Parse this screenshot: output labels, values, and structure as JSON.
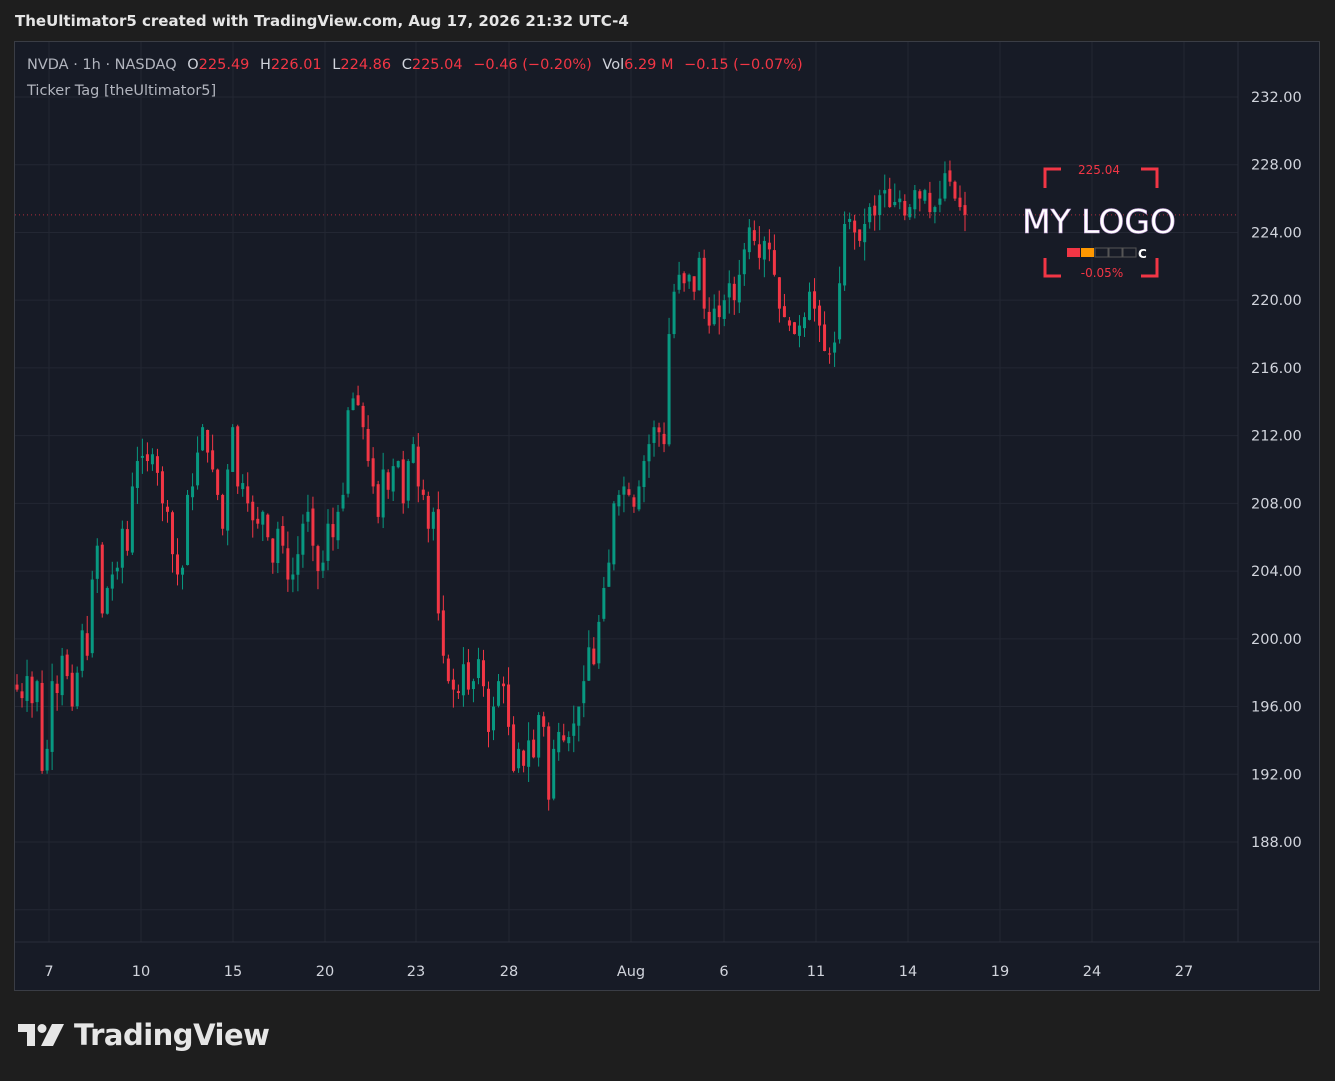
{
  "header": {
    "text": "TheUltimator5 created with TradingView.com, Aug 17, 2026 21:32 UTC-4"
  },
  "legend": {
    "symbol": "NVDA · 1h · NASDAQ",
    "open_label": "O",
    "open": "225.49",
    "high_label": "H",
    "high": "226.01",
    "low_label": "L",
    "low": "224.86",
    "close_label": "C",
    "close": "225.04",
    "change": "−0.46 (−0.20%)",
    "vol_label": "Vol",
    "vol": "6.29 M",
    "vol_change": "−0.15 (−0.07%)",
    "indicator": "Ticker Tag [theUltimator5]"
  },
  "overlay": {
    "price": "225.04",
    "logo_text": "MY LOGO",
    "label_c": "C",
    "pct": "-0.05%"
  },
  "brand": {
    "name": "TradingView"
  },
  "colors": {
    "background": "#171b26",
    "grid": "#232733",
    "up": "#089981",
    "down": "#f23645",
    "axis_text": "#d1d4dc",
    "overlay_accent": "#f23645"
  },
  "chart_data": {
    "type": "candlestick",
    "symbol": "NVDA",
    "interval": "1h",
    "exchange": "NASDAQ",
    "y_ticks": [
      232,
      228,
      224,
      220,
      216,
      212,
      208,
      204,
      200,
      196,
      192,
      188
    ],
    "y_tick_labels": [
      "232.00",
      "228.00",
      "224.00",
      "220.00",
      "216.00",
      "212.00",
      "208.00",
      "204.00",
      "200.00",
      "196.00",
      "192.00",
      "188.00"
    ],
    "ylim": [
      184,
      234
    ],
    "x_labels": [
      "7",
      "10",
      "15",
      "20",
      "23",
      "28",
      "Aug",
      "6",
      "11",
      "14",
      "19",
      "24",
      "27"
    ],
    "last_price": 225.04,
    "price_path": [
      197,
      196.5,
      197.8,
      196.2,
      197.5,
      192.2,
      193.5,
      197.5,
      196.8,
      199,
      197.8,
      196,
      198,
      200.5,
      199,
      203.5,
      205.5,
      201.5,
      203,
      203.8,
      204.2,
      206.5,
      205.2,
      209,
      210.5,
      210.8,
      210.5,
      210.9,
      209.8,
      208,
      207.5,
      205,
      203.8,
      204.2,
      208.5,
      209,
      211,
      212.5,
      211,
      210,
      208.5,
      206.5,
      210,
      212.5,
      209,
      209.2,
      208,
      207,
      206.8,
      207.5,
      206,
      204.5,
      206.5,
      205.5,
      203.5,
      203.8,
      205,
      206.8,
      207.5,
      205.5,
      204,
      204.5,
      206.8,
      206,
      207.5,
      208.5,
      213.5,
      214.2,
      213.8,
      212.5,
      210.5,
      209,
      207.2,
      210,
      208.8,
      210.2,
      210.5,
      208,
      210.5,
      211.5,
      209,
      208.5,
      206.5,
      207.5,
      201.5,
      199,
      197.5,
      197,
      196.8,
      198.5,
      197,
      197.5,
      198.8,
      197.2,
      194.5,
      196,
      197.5,
      197.2,
      194.8,
      192.2,
      193.5,
      192.5,
      194,
      193,
      195.5,
      194.8,
      190.5,
      193.5,
      194.5,
      194,
      194.2,
      195,
      196,
      197.5,
      199.5,
      198.5,
      201,
      203,
      204.5,
      208,
      208.5,
      209,
      208.5,
      207.8,
      209,
      210.5,
      211.5,
      212.5,
      212.2,
      211.5,
      218,
      220.5,
      221.5,
      221,
      221.5,
      220.5,
      222.5,
      219.5,
      218.5,
      219.5,
      219,
      220,
      221,
      220,
      221.5,
      223,
      224.3,
      223.5,
      222.5,
      223.5,
      223,
      221.5,
      219.5,
      219,
      218.5,
      218,
      218.5,
      219,
      220.5,
      219.5,
      218.5,
      217,
      216.8,
      217.5,
      221,
      224.5,
      224.8,
      224,
      223.5,
      224.5,
      225.5,
      225,
      226.2,
      226.5,
      225.5,
      225.8,
      226,
      225,
      225.5,
      226.5,
      226,
      226.5,
      225.2,
      225.5,
      226,
      227.5,
      227,
      226,
      225.5,
      225.04
    ]
  }
}
